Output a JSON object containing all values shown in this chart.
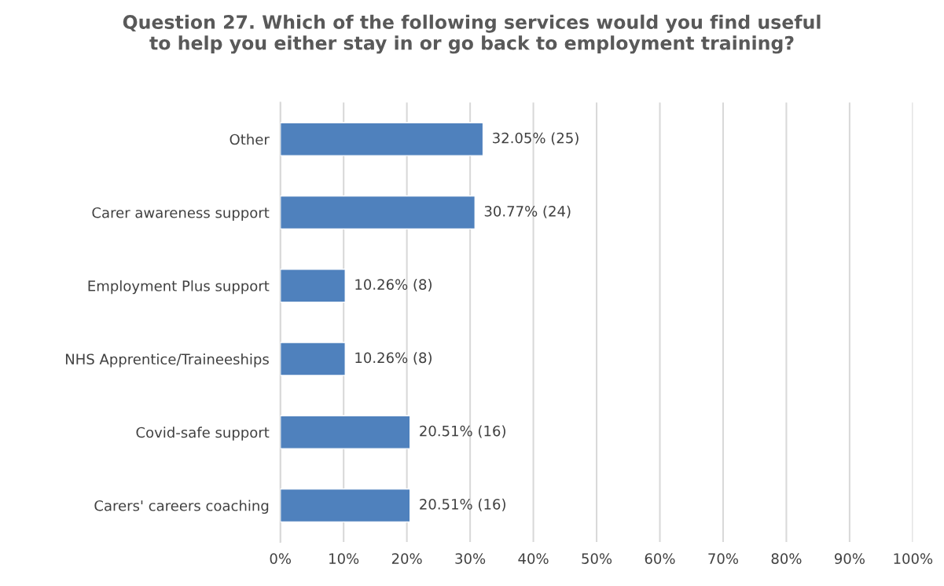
{
  "chart_data": {
    "type": "bar",
    "orientation": "horizontal",
    "title": "Question 27. Which of the following services would you find useful\nto help you either stay in or go back to employment training?",
    "categories": [
      "Other",
      "Carer awareness support",
      "Employment Plus support",
      "NHS Apprentice/Traineeships",
      "Covid-safe support",
      "Carers' careers coaching"
    ],
    "values": [
      32.05,
      30.77,
      10.26,
      10.26,
      20.51,
      20.51
    ],
    "value_labels": [
      "32.05% (25)",
      "30.77% (24)",
      "10.26% (8)",
      "10.26% (8)",
      "20.51% (16)",
      "20.51% (16)"
    ],
    "color": "#4f81bd",
    "xlim": [
      0,
      100
    ],
    "xticks": [
      {
        "value": 0,
        "label": "0%"
      },
      {
        "value": 10,
        "label": "10%"
      },
      {
        "value": 20,
        "label": "20%"
      },
      {
        "value": 30,
        "label": "30%"
      },
      {
        "value": 40,
        "label": "40%"
      },
      {
        "value": 50,
        "label": "50%"
      },
      {
        "value": 60,
        "label": "60%"
      },
      {
        "value": 70,
        "label": "70%"
      },
      {
        "value": 80,
        "label": "80%"
      },
      {
        "value": 90,
        "label": "90%"
      },
      {
        "value": 100,
        "label": "100%"
      }
    ],
    "grid": "x",
    "legend": false
  }
}
